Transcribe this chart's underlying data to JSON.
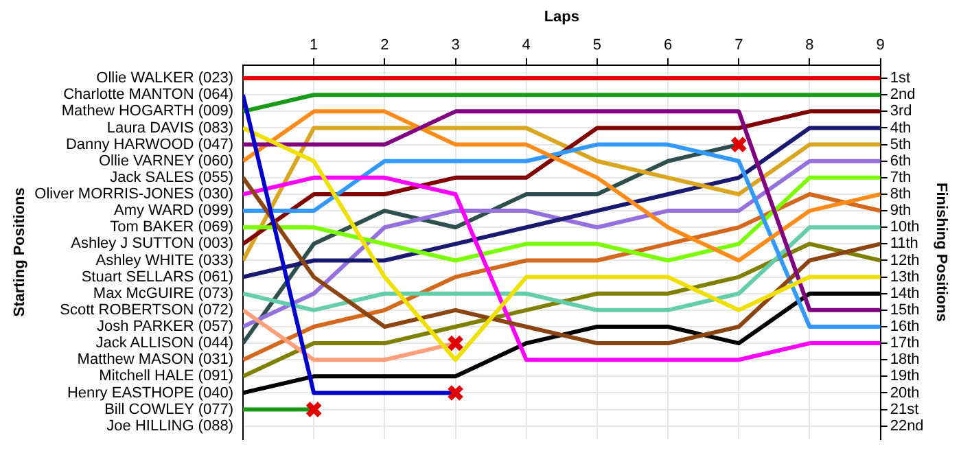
{
  "chart_data": {
    "type": "line",
    "xlabel": "Laps",
    "ylabel": "Finishing Positions",
    "annotations": [
      "Starting Positions"
    ],
    "x": [
      0,
      1,
      2,
      3,
      4,
      5,
      6,
      7,
      8,
      9
    ],
    "xlim": [
      0,
      9
    ],
    "xticks": [
      1,
      2,
      3,
      4,
      5,
      6,
      7,
      8,
      9
    ],
    "y2_categories": [
      "Ollie WALKER (023)",
      "Charlotte MANTON (064)",
      "Mathew HOGARTH (009)",
      "Laura DAVIS (083)",
      "Danny HARWOOD (047)",
      "Ollie VARNEY (060)",
      "Jack SALES (055)",
      "Oliver MORRIS-JONES (030)",
      "Amy WARD (099)",
      "Tom BAKER (069)",
      "Ashley J SUTTON (003)",
      "Ashley WHITE (033)",
      "Stuart SELLARS (061)",
      "Max McGUIRE (073)",
      "Scott ROBERTSON (072)",
      "Josh PARKER (057)",
      "Jack ALLISON (044)",
      "Matthew MASON (031)",
      "Mitchell HALE (091)",
      "Henry EASTHOPE (040)",
      "Bill COWLEY (077)",
      "Joe HILLING (088)"
    ],
    "ylim": [
      22.8,
      0.2
    ],
    "yticks": [
      {
        "value": 1,
        "label": "1st"
      },
      {
        "value": 2,
        "label": "2nd"
      },
      {
        "value": 3,
        "label": "3rd"
      },
      {
        "value": 4,
        "label": "4th"
      },
      {
        "value": 5,
        "label": "5th"
      },
      {
        "value": 6,
        "label": "6th"
      },
      {
        "value": 7,
        "label": "7th"
      },
      {
        "value": 8,
        "label": "8th"
      },
      {
        "value": 9,
        "label": "9th"
      },
      {
        "value": 10,
        "label": "10th"
      },
      {
        "value": 11,
        "label": "11th"
      },
      {
        "value": 12,
        "label": "12th"
      },
      {
        "value": 13,
        "label": "13th"
      },
      {
        "value": 14,
        "label": "14th"
      },
      {
        "value": 15,
        "label": "15th"
      },
      {
        "value": 16,
        "label": "16th"
      },
      {
        "value": 17,
        "label": "17th"
      },
      {
        "value": 18,
        "label": "18th"
      },
      {
        "value": 19,
        "label": "19th"
      },
      {
        "value": 20,
        "label": "20th"
      },
      {
        "value": 21,
        "label": "21st"
      },
      {
        "value": 22,
        "label": "22nd"
      }
    ],
    "grid": true,
    "marker": "none",
    "line_style": "solid",
    "series": [
      {
        "color": "#e00000",
        "values": [
          1,
          1,
          1,
          1,
          1,
          1,
          1,
          1,
          1,
          1
        ]
      },
      {
        "color": "#0000cc",
        "values": [
          2,
          20,
          20,
          20,
          null,
          null,
          null,
          null,
          null,
          null
        ]
      },
      {
        "color": "#1a9a1a",
        "values": [
          3,
          2,
          2,
          2,
          2,
          2,
          2,
          2,
          2,
          2
        ]
      },
      {
        "color": "#f0e000",
        "values": [
          4,
          6,
          13,
          18,
          13,
          13,
          13,
          15,
          13,
          13
        ]
      },
      {
        "color": "#800080",
        "values": [
          5,
          5,
          5,
          3,
          3,
          3,
          3,
          3,
          15,
          15
        ]
      },
      {
        "color": "#ff8c1a",
        "values": [
          6,
          3,
          3,
          5,
          5,
          7,
          10,
          12,
          9,
          8
        ]
      },
      {
        "color": "#8b4513",
        "values": [
          7,
          13,
          16,
          15,
          16,
          17,
          17,
          16,
          12,
          11
        ]
      },
      {
        "color": "#ff00ff",
        "values": [
          8,
          7,
          7,
          8,
          18,
          18,
          18,
          18,
          17,
          17
        ]
      },
      {
        "color": "#3399ff",
        "values": [
          9,
          9,
          6,
          6,
          6,
          5,
          5,
          6,
          16,
          16
        ]
      },
      {
        "color": "#7cfc00",
        "values": [
          10,
          10,
          11,
          12,
          11,
          11,
          12,
          11,
          7,
          7
        ]
      },
      {
        "color": "#800000",
        "values": [
          11,
          8,
          8,
          7,
          7,
          4,
          4,
          4,
          3,
          3
        ]
      },
      {
        "color": "#daa520",
        "values": [
          12,
          4,
          4,
          4,
          4,
          6,
          7,
          8,
          5,
          5
        ]
      },
      {
        "color": "#191970",
        "values": [
          13,
          12,
          12,
          11,
          10,
          9,
          8,
          7,
          4,
          4
        ]
      },
      {
        "color": "#66cdaa",
        "values": [
          14,
          15,
          14,
          14,
          14,
          15,
          15,
          14,
          10,
          10
        ]
      },
      {
        "color": "#ffa07a",
        "values": [
          15,
          18,
          18,
          17,
          null,
          null,
          null,
          null,
          null,
          null
        ]
      },
      {
        "color": "#9370db",
        "values": [
          16,
          14,
          10,
          9,
          9,
          10,
          9,
          9,
          6,
          6
        ]
      },
      {
        "color": "#2f4f4f",
        "values": [
          17,
          11,
          9,
          10,
          8,
          8,
          6,
          5,
          null,
          null
        ]
      },
      {
        "color": "#d2691e",
        "values": [
          18,
          16,
          15,
          13,
          12,
          12,
          11,
          10,
          8,
          9
        ]
      },
      {
        "color": "#808000",
        "values": [
          19,
          17,
          17,
          16,
          15,
          14,
          14,
          13,
          11,
          12
        ]
      },
      {
        "color": "#000000",
        "values": [
          20,
          19,
          19,
          19,
          17,
          16,
          16,
          17,
          14,
          14
        ]
      },
      {
        "color": "#1a9a1a",
        "values": [
          21,
          21,
          null,
          null,
          null,
          null,
          null,
          null,
          null,
          null
        ]
      },
      {
        "type": "scatter",
        "marker": "cross",
        "color": "#e00000",
        "x": [
          1,
          3,
          3,
          7
        ],
        "values": [
          21,
          20,
          17,
          5
        ]
      }
    ]
  }
}
